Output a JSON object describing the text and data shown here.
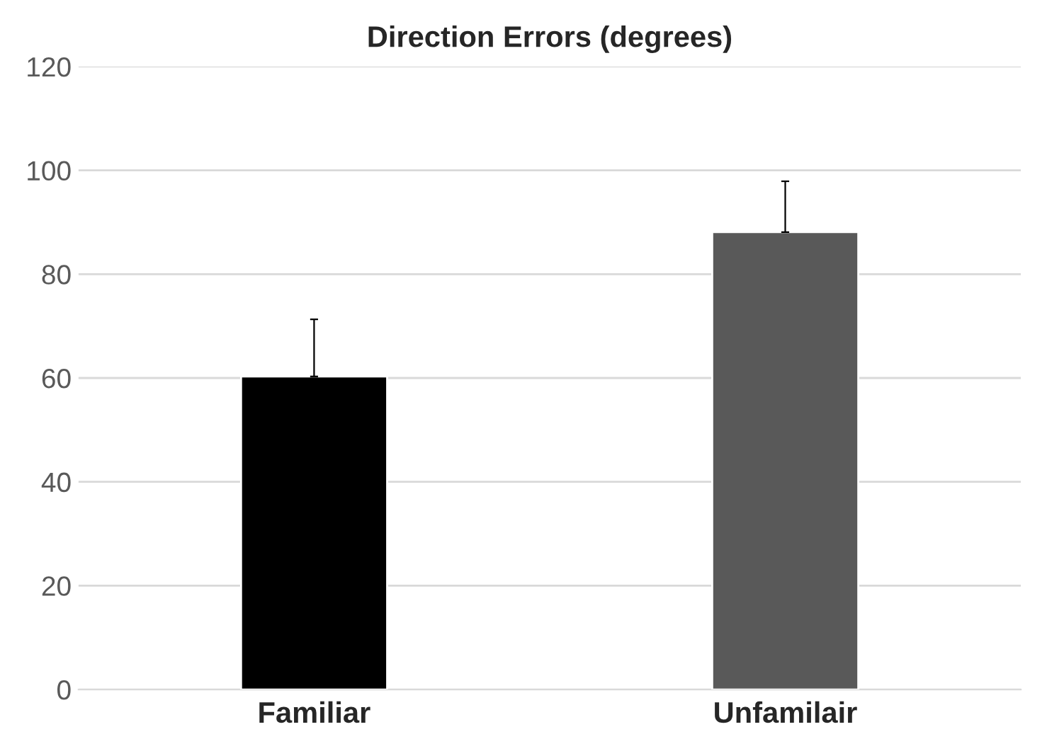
{
  "chart_data": {
    "type": "bar",
    "title": "Direction Errors (degrees)",
    "categories": [
      "Familiar",
      "Unfamilair"
    ],
    "values": [
      60.3,
      88.1
    ],
    "colors": [
      "#000000",
      "#595959"
    ],
    "errors": [
      [
        60.3,
        71.3
      ],
      [
        88.1,
        97.9
      ]
    ],
    "ylim": [
      0,
      120
    ],
    "yticks": [
      0,
      20,
      40,
      60,
      80,
      100,
      120
    ],
    "grid": "y",
    "legend": false
  }
}
